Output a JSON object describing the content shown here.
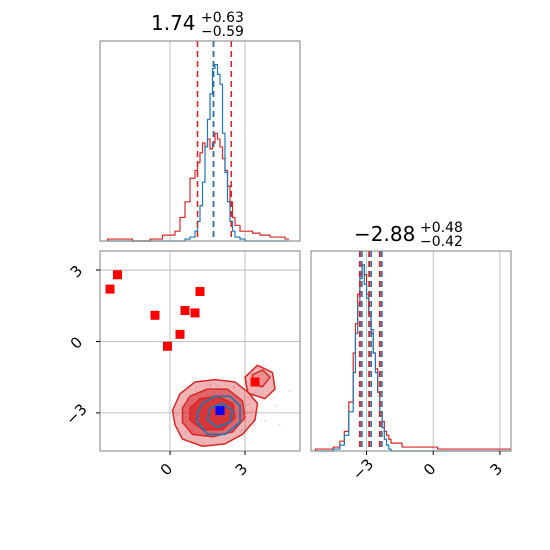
{
  "chart_data": {
    "type": "corner",
    "parameters": [
      "",
      ""
    ],
    "titles": [
      {
        "median": "1.74",
        "plus": "+0.63",
        "minus": "−0.59"
      },
      {
        "median": "−2.88",
        "plus": "+0.48",
        "minus": "−0.42"
      }
    ],
    "colors": {
      "blue": "#1f77b4",
      "red": "#d62728",
      "navy": "#0000ff",
      "marker": "#ff0000",
      "grid": "#b0b0b0"
    },
    "axes": {
      "x0": {
        "range": [
          -2.8,
          5.2
        ],
        "ticks": [
          0,
          3
        ],
        "tick_labels": [
          "0",
          "3"
        ]
      },
      "x1": {
        "range": [
          -5.5,
          3.5
        ],
        "ticks": [
          -3,
          0,
          3
        ],
        "tick_labels": [
          "−3",
          "0",
          "3"
        ]
      },
      "y_joint": {
        "range": [
          -4.6,
          3.8
        ],
        "ticks": [
          -3,
          0,
          3
        ],
        "tick_labels": [
          "−3",
          "0",
          "3"
        ]
      }
    },
    "hist_param1": {
      "x": [
        -2.5,
        -2.0,
        -1.5,
        -0.8,
        -0.3,
        0.2,
        0.4,
        0.6,
        0.8,
        1.0,
        1.1,
        1.2,
        1.3,
        1.4,
        1.5,
        1.6,
        1.7,
        1.8,
        1.9,
        2.0,
        2.1,
        2.2,
        2.3,
        2.4,
        2.5,
        2.6,
        2.8,
        3.0,
        3.3,
        3.6,
        4.0,
        4.6
      ],
      "blue": [
        0,
        0,
        0,
        0,
        0,
        0,
        0,
        0.01,
        0.02,
        0.05,
        0.1,
        0.18,
        0.3,
        0.48,
        0.62,
        0.75,
        0.88,
        0.9,
        0.85,
        0.8,
        0.55,
        0.35,
        0.2,
        0.1,
        0.05,
        0.02,
        0.01,
        0,
        0,
        0,
        0,
        0
      ],
      "red": [
        0.01,
        0.01,
        0,
        0.01,
        0.03,
        0.05,
        0.12,
        0.2,
        0.32,
        0.36,
        0.4,
        0.45,
        0.5,
        0.48,
        0.52,
        0.47,
        0.5,
        0.55,
        0.52,
        0.48,
        0.42,
        0.36,
        0.28,
        0.2,
        0.12,
        0.08,
        0.05,
        0.05,
        0.04,
        0.03,
        0.02,
        0.01
      ],
      "blue_lines": [
        1.74
      ],
      "red_lines": [
        1.1,
        1.74,
        2.45
      ]
    },
    "hist_param2": {
      "x": [
        -5.3,
        -4.9,
        -4.5,
        -4.2,
        -4.0,
        -3.8,
        -3.6,
        -3.5,
        -3.4,
        -3.3,
        -3.2,
        -3.1,
        -3.0,
        -2.9,
        -2.8,
        -2.7,
        -2.6,
        -2.5,
        -2.4,
        -2.3,
        -2.2,
        -2.1,
        -2.0,
        -1.9,
        -1.7,
        -1.4,
        -1.0,
        0.2,
        1.0,
        2.0,
        2.8,
        3.3
      ],
      "blue": [
        0,
        0,
        0.01,
        0.03,
        0.08,
        0.2,
        0.4,
        0.6,
        0.75,
        0.88,
        0.95,
        0.85,
        0.78,
        0.7,
        0.62,
        0.5,
        0.4,
        0.3,
        0.2,
        0.12,
        0.06,
        0.03,
        0.01,
        0,
        0,
        0,
        0,
        0,
        0,
        0,
        0,
        0
      ],
      "red": [
        0.01,
        0.01,
        0.02,
        0.05,
        0.1,
        0.25,
        0.5,
        0.65,
        0.8,
        0.9,
        0.95,
        0.9,
        0.8,
        0.7,
        0.6,
        0.5,
        0.42,
        0.3,
        0.2,
        0.15,
        0.1,
        0.08,
        0.06,
        0.04,
        0.04,
        0.02,
        0.02,
        0.01,
        0.01,
        0.01,
        0.01,
        0.01
      ],
      "blue_lines": [
        -3.3,
        -2.88,
        -2.4
      ],
      "red_lines": [
        -3.3,
        -2.88,
        -2.4
      ]
    },
    "joint": {
      "markers_red": [
        [
          -2.4,
          2.2
        ],
        [
          -2.1,
          2.8
        ],
        [
          -0.6,
          1.1
        ],
        [
          -0.1,
          -0.2
        ],
        [
          0.4,
          0.3
        ],
        [
          0.6,
          1.3
        ],
        [
          1.0,
          1.2
        ],
        [
          1.2,
          2.1
        ],
        [
          3.4,
          -1.7
        ]
      ],
      "marker_blue": [
        2.0,
        -2.9
      ],
      "contours_red": [
        [
          [
            0.2,
            -3.5
          ],
          [
            0.5,
            -4.1
          ],
          [
            1.3,
            -4.4
          ],
          [
            2.2,
            -4.3
          ],
          [
            2.9,
            -3.9
          ],
          [
            3.4,
            -3.3
          ],
          [
            3.5,
            -2.6
          ],
          [
            3.1,
            -2.1
          ],
          [
            3.0,
            -1.5
          ],
          [
            3.5,
            -1.0
          ],
          [
            4.1,
            -1.3
          ],
          [
            4.2,
            -2.0
          ],
          [
            3.8,
            -2.4
          ],
          [
            3.2,
            -2.2
          ],
          [
            2.6,
            -1.7
          ],
          [
            1.8,
            -1.6
          ],
          [
            1.0,
            -1.7
          ],
          [
            0.4,
            -2.2
          ],
          [
            0.1,
            -2.9
          ]
        ],
        [
          [
            0.5,
            -3.4
          ],
          [
            0.9,
            -3.9
          ],
          [
            1.7,
            -4.0
          ],
          [
            2.5,
            -3.8
          ],
          [
            3.0,
            -3.2
          ],
          [
            2.9,
            -2.5
          ],
          [
            2.3,
            -2.0
          ],
          [
            1.5,
            -2.0
          ],
          [
            0.8,
            -2.3
          ],
          [
            0.5,
            -2.8
          ]
        ],
        [
          [
            0.8,
            -3.3
          ],
          [
            1.3,
            -3.7
          ],
          [
            2.1,
            -3.7
          ],
          [
            2.6,
            -3.2
          ],
          [
            2.5,
            -2.6
          ],
          [
            1.9,
            -2.3
          ],
          [
            1.2,
            -2.4
          ],
          [
            0.8,
            -2.8
          ]
        ],
        [
          [
            3.3,
            -1.4
          ],
          [
            3.7,
            -1.2
          ],
          [
            4.0,
            -1.5
          ],
          [
            3.7,
            -1.9
          ],
          [
            3.3,
            -1.8
          ]
        ]
      ],
      "contours_blue": [
        [
          [
            1.1,
            -3.4
          ],
          [
            1.5,
            -3.9
          ],
          [
            2.2,
            -3.9
          ],
          [
            2.8,
            -3.4
          ],
          [
            2.8,
            -2.7
          ],
          [
            2.4,
            -2.3
          ],
          [
            1.8,
            -2.3
          ],
          [
            1.3,
            -2.6
          ],
          [
            1.1,
            -3.0
          ]
        ],
        [
          [
            1.5,
            -3.3
          ],
          [
            1.9,
            -3.6
          ],
          [
            2.4,
            -3.4
          ],
          [
            2.5,
            -2.9
          ],
          [
            2.1,
            -2.6
          ],
          [
            1.6,
            -2.8
          ]
        ]
      ]
    }
  }
}
